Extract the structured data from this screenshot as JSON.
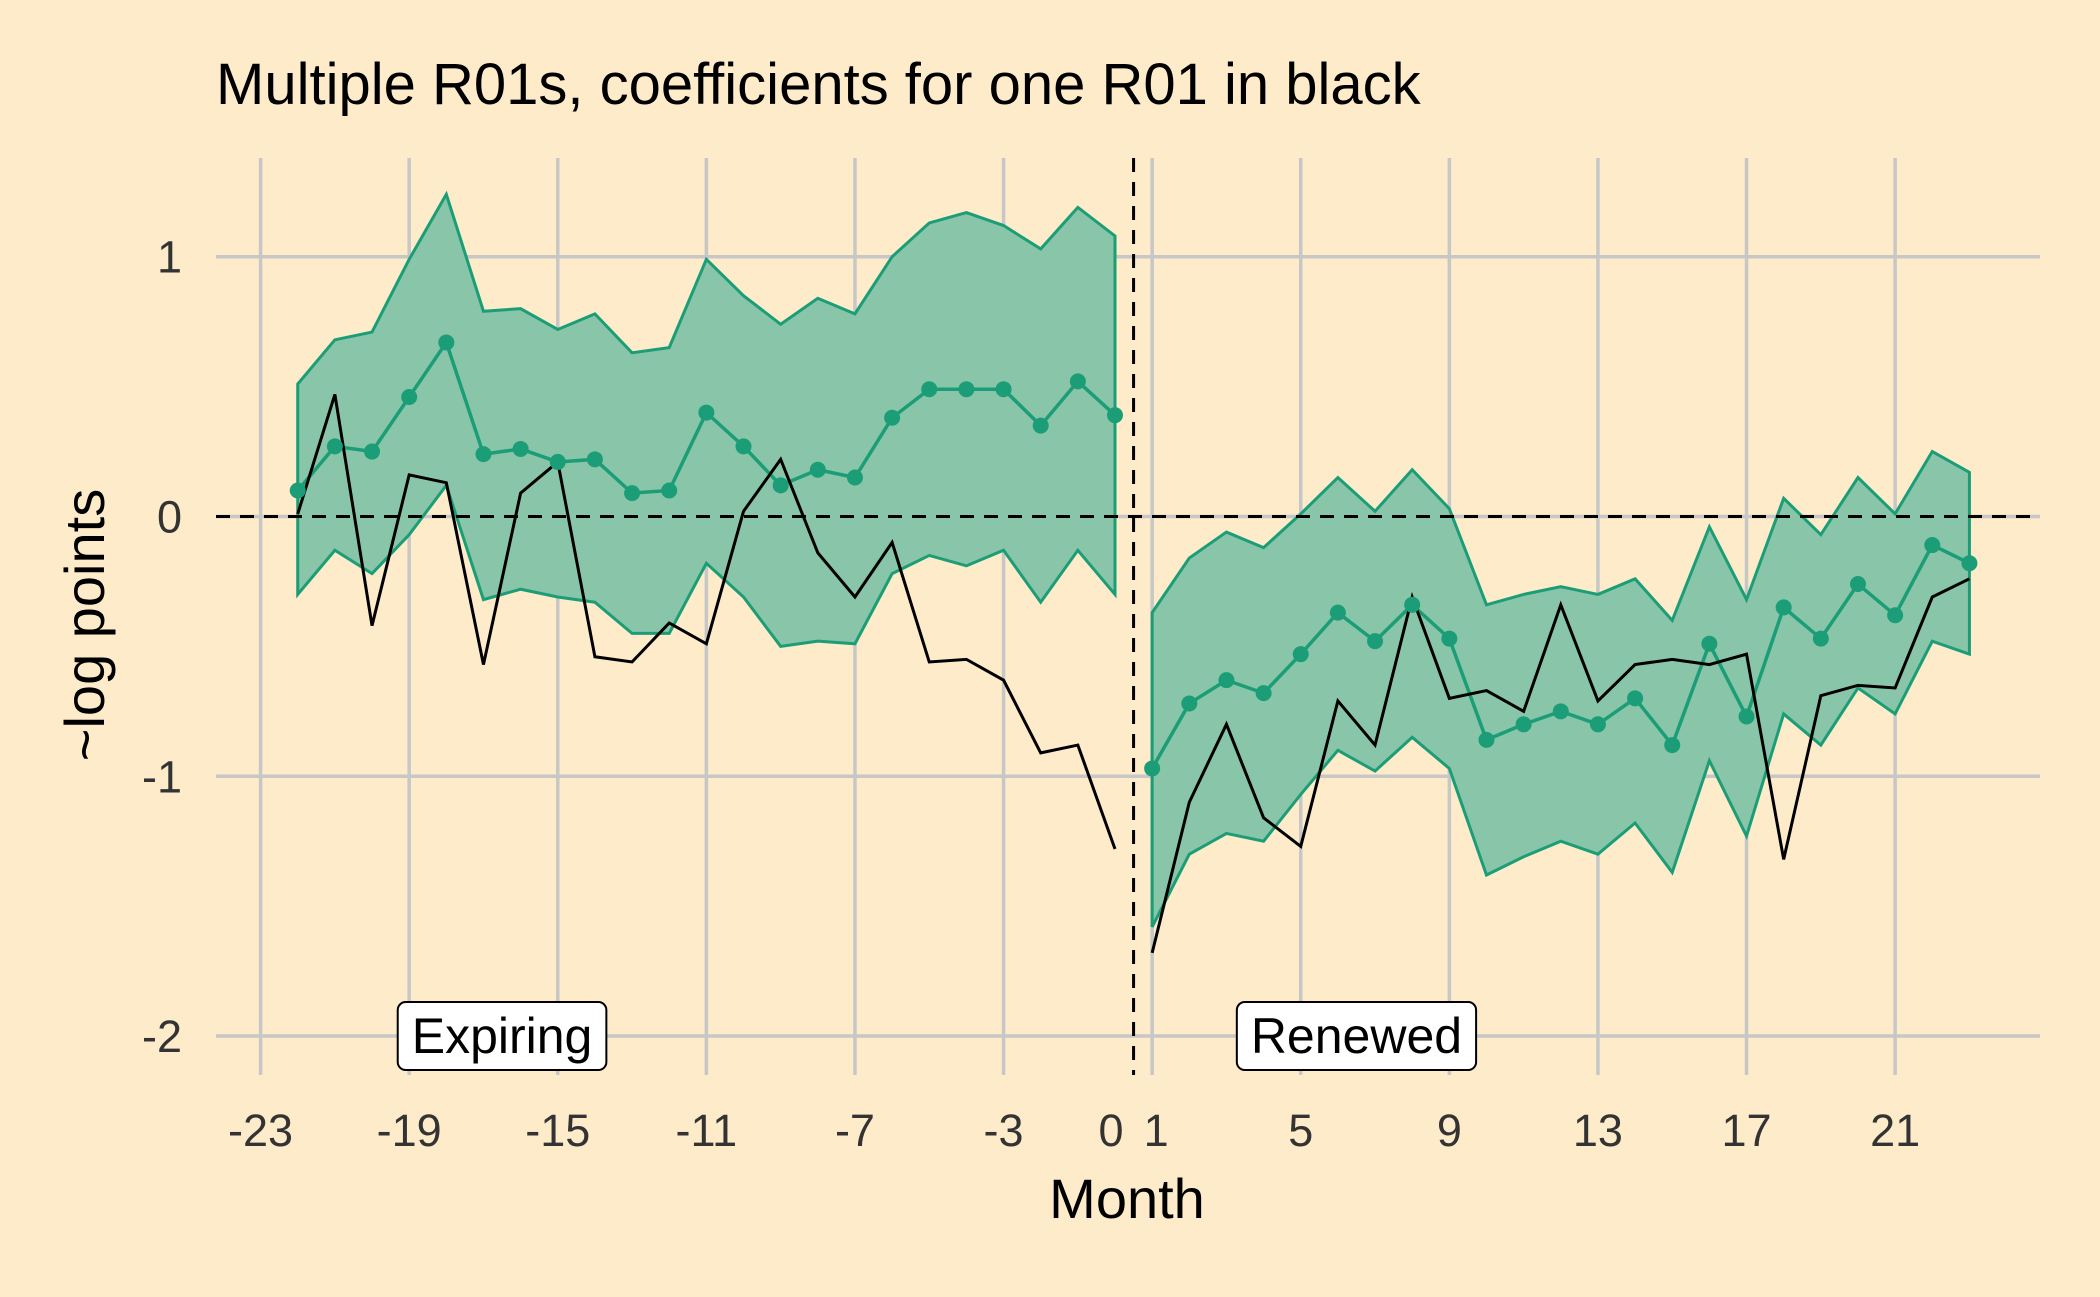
{
  "chart_data": {
    "type": "line",
    "title": "Multiple R01s, coefficients for one R01 in black",
    "xlabel": "Month",
    "ylabel": "~log points",
    "xlim": [
      -24.2,
      24.9
    ],
    "ylim": [
      -2.15,
      1.38
    ],
    "x_ticks": [
      -23,
      -19,
      -15,
      -11,
      -7,
      -3,
      0,
      1,
      5,
      9,
      13,
      17,
      21
    ],
    "x_tick_labels": [
      "-23",
      "-19",
      "-15",
      "-11",
      "-7",
      "-3",
      "0",
      "1",
      "5",
      "9",
      "13",
      "17",
      "21"
    ],
    "y_ticks": [
      1,
      0,
      -1,
      -2
    ],
    "y_tick_labels": [
      "1",
      "0",
      "-1",
      "-2"
    ],
    "grid": true,
    "reference_lines": {
      "horizontal_y": 0,
      "vertical_x": 0.5,
      "style": "dashed"
    },
    "colors": {
      "background": "#FDEBCA",
      "grid": "#C7C7C7",
      "ribbon_fill": "#89C5A8",
      "ribbon_edge": "#1B9E77",
      "series_teal": "#1B9E77",
      "series_black": "#000000"
    },
    "annotations": [
      {
        "text": "Expiring",
        "x": -16.5,
        "y": -2.0
      },
      {
        "text": "Renewed",
        "x": 6.5,
        "y": -2.0
      }
    ],
    "series": [
      {
        "color": "#1B9E77",
        "markers": true,
        "segments": [
          {
            "x": [
              -22,
              -21,
              -20,
              -19,
              -18,
              -17,
              -16,
              -15,
              -14,
              -13,
              -12,
              -11,
              -10,
              -9,
              -8,
              -7,
              -6,
              -5,
              -4,
              -3,
              -2,
              -1,
              0
            ],
            "y": [
              0.1,
              0.27,
              0.25,
              0.46,
              0.67,
              0.24,
              0.26,
              0.21,
              0.22,
              0.09,
              0.1,
              0.4,
              0.27,
              0.12,
              0.18,
              0.15,
              0.38,
              0.49,
              0.49,
              0.49,
              0.35,
              0.52,
              0.39
            ],
            "lower": [
              -0.3,
              -0.13,
              -0.22,
              -0.07,
              0.12,
              -0.32,
              -0.28,
              -0.31,
              -0.33,
              -0.45,
              -0.45,
              -0.18,
              -0.31,
              -0.5,
              -0.48,
              -0.49,
              -0.22,
              -0.15,
              -0.19,
              -0.13,
              -0.33,
              -0.13,
              -0.3
            ],
            "upper": [
              0.51,
              0.68,
              0.71,
              0.99,
              1.24,
              0.79,
              0.8,
              0.72,
              0.78,
              0.63,
              0.65,
              0.99,
              0.85,
              0.74,
              0.84,
              0.78,
              1.0,
              1.13,
              1.17,
              1.12,
              1.03,
              1.19,
              1.08
            ]
          },
          {
            "x": [
              1,
              2,
              3,
              4,
              5,
              6,
              7,
              8,
              9,
              10,
              11,
              12,
              13,
              14,
              15,
              16,
              17,
              18,
              19,
              20,
              21,
              22,
              23
            ],
            "y": [
              -0.97,
              -0.72,
              -0.63,
              -0.68,
              -0.53,
              -0.37,
              -0.48,
              -0.34,
              -0.47,
              -0.86,
              -0.8,
              -0.75,
              -0.8,
              -0.7,
              -0.88,
              -0.49,
              -0.77,
              -0.35,
              -0.47,
              -0.26,
              -0.38,
              -0.11,
              -0.18
            ],
            "lower": [
              -1.58,
              -1.3,
              -1.22,
              -1.25,
              -1.07,
              -0.9,
              -0.98,
              -0.85,
              -0.97,
              -1.38,
              -1.31,
              -1.25,
              -1.3,
              -1.18,
              -1.37,
              -0.94,
              -1.23,
              -0.76,
              -0.88,
              -0.66,
              -0.76,
              -0.48,
              -0.53
            ],
            "upper": [
              -0.37,
              -0.16,
              -0.06,
              -0.12,
              0.01,
              0.15,
              0.02,
              0.18,
              0.03,
              -0.34,
              -0.3,
              -0.27,
              -0.3,
              -0.24,
              -0.4,
              -0.04,
              -0.32,
              0.07,
              -0.07,
              0.15,
              0.01,
              0.25,
              0.17
            ]
          }
        ]
      },
      {
        "color": "#000000",
        "markers": false,
        "segments": [
          {
            "x": [
              -22,
              -21,
              -20,
              -19,
              -18,
              -17,
              -16,
              -15,
              -14,
              -13,
              -12,
              -11,
              -10,
              -9,
              -8,
              -7,
              -6,
              -5,
              -4,
              -3,
              -2,
              -1,
              0
            ],
            "y": [
              0.01,
              0.47,
              -0.42,
              0.16,
              0.13,
              -0.57,
              0.09,
              0.21,
              -0.54,
              -0.56,
              -0.41,
              -0.49,
              0.02,
              0.22,
              -0.14,
              -0.31,
              -0.1,
              -0.56,
              -0.55,
              -0.63,
              -0.91,
              -0.88,
              -1.28
            ]
          },
          {
            "x": [
              1,
              2,
              3,
              4,
              5,
              6,
              7,
              8,
              9,
              10,
              11,
              12,
              13,
              14,
              15,
              16,
              17,
              18,
              19,
              20,
              21,
              22,
              23
            ],
            "y": [
              -1.68,
              -1.1,
              -0.8,
              -1.16,
              -1.27,
              -0.71,
              -0.88,
              -0.31,
              -0.7,
              -0.67,
              -0.75,
              -0.34,
              -0.71,
              -0.57,
              -0.55,
              -0.57,
              -0.53,
              -1.32,
              -0.69,
              -0.65,
              -0.66,
              -0.31,
              -0.24
            ]
          }
        ]
      }
    ]
  }
}
